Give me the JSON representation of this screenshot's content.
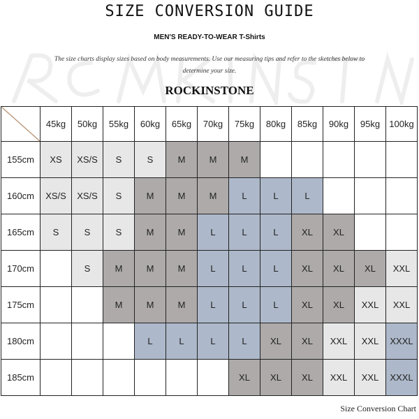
{
  "header": {
    "title": "SIZE CONVERSION GUIDE",
    "subtitle": "MEN'S READY-TO-WEAR T-Shirts",
    "description": "The size charts display sizes based on body measurements.  Use our measuring tips and refer to the sketches below to determine your size.",
    "watermark": "ROCKINSTONE",
    "brand": "ROCKINSTONE"
  },
  "colors": {
    "light": "#e7e7e7",
    "gray": "#aeaaaa",
    "blue": "#adb9ca"
  },
  "table": {
    "columns": [
      "45kg",
      "50kg",
      "55kg",
      "60kg",
      "65kg",
      "70kg",
      "75kg",
      "80kg",
      "85kg",
      "90kg",
      "95kg",
      "100kg"
    ],
    "rows": [
      {
        "height": "155cm",
        "cells": [
          "XS",
          "XS/S",
          "S",
          "S",
          "M",
          "M",
          "M",
          "",
          "",
          "",
          "",
          ""
        ]
      },
      {
        "height": "160cm",
        "cells": [
          "XS/S",
          "XS/S",
          "S",
          "M",
          "M",
          "M",
          "L",
          "L",
          "L",
          "",
          "",
          ""
        ]
      },
      {
        "height": "165cm",
        "cells": [
          "S",
          "S",
          "S",
          "M",
          "M",
          "L",
          "L",
          "L",
          "XL",
          "XL",
          "",
          ""
        ]
      },
      {
        "height": "170cm",
        "cells": [
          "",
          "S",
          "M",
          "M",
          "M",
          "L",
          "L",
          "L",
          "XL",
          "XL",
          "XL",
          "XXL"
        ]
      },
      {
        "height": "175cm",
        "cells": [
          "",
          "",
          "M",
          "M",
          "M",
          "L",
          "L",
          "L",
          "XL",
          "XL",
          "XXL",
          "XXL"
        ]
      },
      {
        "height": "180cm",
        "cells": [
          "",
          "",
          "",
          "L",
          "L",
          "L",
          "L",
          "XL",
          "XL",
          "XXL",
          "XXL",
          "XXXL"
        ]
      },
      {
        "height": "185cm",
        "cells": [
          "",
          "",
          "",
          "",
          "",
          "",
          "XL",
          "XL",
          "XL",
          "XXL",
          "XXL",
          "XXXL"
        ]
      }
    ]
  },
  "caption": "Size Conversion Chart"
}
